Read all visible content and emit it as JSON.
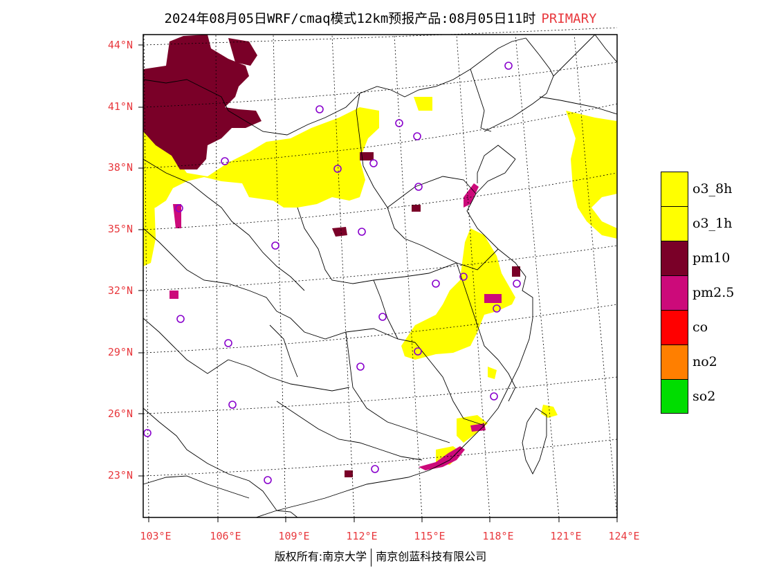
{
  "title": {
    "main": "2024年08月05日WRF/cmaq模式12km预报产品:08月05日11时",
    "tag": "PRIMARY"
  },
  "axes": {
    "lat_labels": [
      "44°N",
      "41°N",
      "38°N",
      "35°N",
      "32°N",
      "29°N",
      "26°N",
      "23°N"
    ],
    "lon_labels": [
      "103°E",
      "106°E",
      "109°E",
      "112°E",
      "115°E",
      "118°E",
      "121°E",
      "124°E"
    ]
  },
  "legend": [
    {
      "label": "o3_8h",
      "color": "#ffff00"
    },
    {
      "label": "o3_1h",
      "color": "#ffff00"
    },
    {
      "label": "pm10",
      "color": "#7a0028"
    },
    {
      "label": "pm2.5",
      "color": "#cc0a7a"
    },
    {
      "label": "co",
      "color": "#ff0000"
    },
    {
      "label": "no2",
      "color": "#ff7f00"
    },
    {
      "label": "so2",
      "color": "#00dd00"
    }
  ],
  "copyright": {
    "left": "版权所有:南京大学",
    "right": "南京创蓝科技有限公司"
  }
}
